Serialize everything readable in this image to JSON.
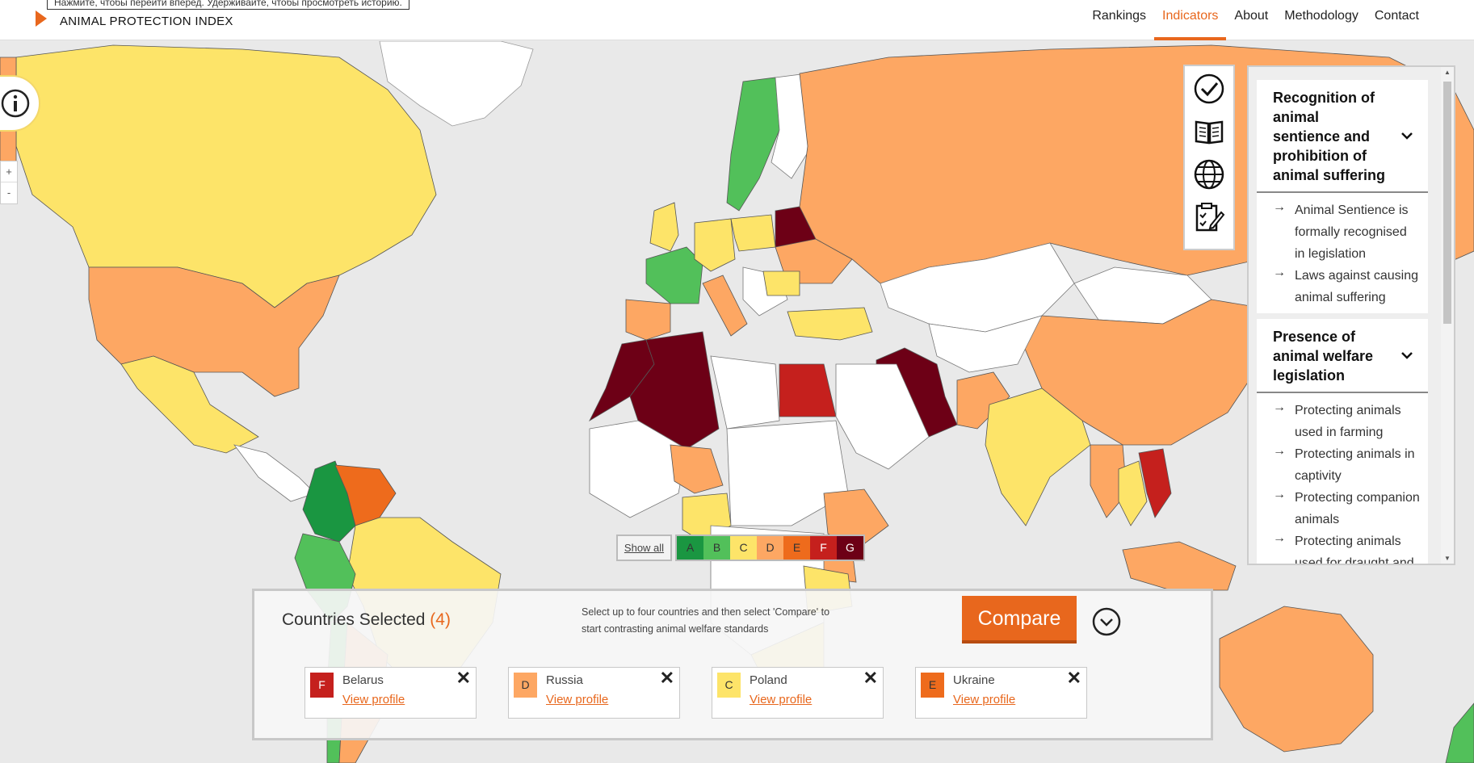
{
  "header": {
    "tooltip": "Нажмите, чтобы перейти вперед. Удерживайте, чтобы просмотреть историю.",
    "brand": "ANIMAL PROTECTION INDEX",
    "nav": [
      "Rankings",
      "Indicators",
      "About",
      "Methodology",
      "Contact"
    ],
    "active_nav": "Indicators",
    "accent": "#e8671d"
  },
  "controls": {
    "zoom_in": "+",
    "zoom_out": "-",
    "info_icon": "info-icon",
    "tool_icons": [
      "check-circle-icon",
      "book-icon",
      "globe-icon",
      "clipboard-edit-icon"
    ]
  },
  "indicators": {
    "sections": [
      {
        "title": "Recognition of animal sentience and prohibition of animal suffering",
        "items": [
          "Animal Sentience is formally recognised in legislation",
          "Laws against causing animal suffering"
        ]
      },
      {
        "title": "Presence of animal welfare legislation",
        "items": [
          "Protecting animals used in farming",
          "Protecting animals in captivity",
          "Protecting companion animals",
          "Protecting animals used for draught and"
        ]
      }
    ]
  },
  "legend": {
    "show_all": "Show all",
    "grades": [
      {
        "label": "A",
        "color": "#1a9641"
      },
      {
        "label": "B",
        "color": "#52c05a"
      },
      {
        "label": "C",
        "color": "#fde469"
      },
      {
        "label": "D",
        "color": "#fda763"
      },
      {
        "label": "E",
        "color": "#ee6b1c"
      },
      {
        "label": "F",
        "color": "#c5201d"
      },
      {
        "label": "G",
        "color": "#6d0016"
      }
    ]
  },
  "compare": {
    "label": "Countries Selected",
    "count": "(4)",
    "hint": "Select up to four countries and then select 'Compare' to start contrasting animal welfare standards",
    "button": "Compare",
    "selected": [
      {
        "grade": "F",
        "name": "Belarus",
        "link": "View profile",
        "color": "#c5201d",
        "text": "#ffffff"
      },
      {
        "grade": "D",
        "name": "Russia",
        "link": "View profile",
        "color": "#fda763",
        "text": "#333333"
      },
      {
        "grade": "C",
        "name": "Poland",
        "link": "View profile",
        "color": "#fde469",
        "text": "#333333"
      },
      {
        "grade": "E",
        "name": "Ukraine",
        "link": "View profile",
        "color": "#ee6b1c",
        "text": "#333333"
      }
    ]
  }
}
